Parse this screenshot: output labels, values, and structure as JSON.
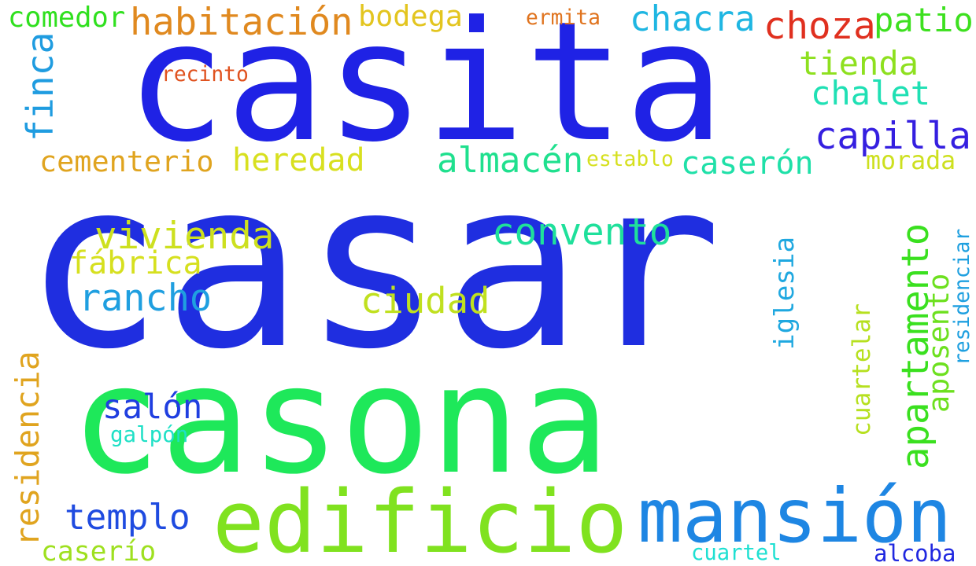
{
  "words": [
    {
      "text": "casar",
      "color": "#1f2ee0"
    },
    {
      "text": "casita",
      "color": "#1f22e5"
    },
    {
      "text": "casona",
      "color": "#1ee85a"
    },
    {
      "text": "edificio",
      "color": "#80e21f"
    },
    {
      "text": "mansión",
      "color": "#1e86e3"
    },
    {
      "text": "habitación",
      "color": "#e0891f"
    },
    {
      "text": "bodega",
      "color": "#e3c51f"
    },
    {
      "text": "chacra",
      "color": "#1fb6e2"
    },
    {
      "text": "choza",
      "color": "#e0301f"
    },
    {
      "text": "patio",
      "color": "#3de01f"
    },
    {
      "text": "comedor",
      "color": "#30e01f"
    },
    {
      "text": "ermita",
      "color": "#e0741f"
    },
    {
      "text": "recinto",
      "color": "#e0521f"
    },
    {
      "text": "tienda",
      "color": "#8ee01f"
    },
    {
      "text": "chalet",
      "color": "#1fe0b4"
    },
    {
      "text": "capilla",
      "color": "#351fe0"
    },
    {
      "text": "finca",
      "color": "#1f9ce0"
    },
    {
      "text": "cementerio",
      "color": "#e0a41f"
    },
    {
      "text": "heredad",
      "color": "#d8e01f"
    },
    {
      "text": "almacén",
      "color": "#1fe08e"
    },
    {
      "text": "establo",
      "color": "#d6e01f"
    },
    {
      "text": "caserón",
      "color": "#1fe0a8"
    },
    {
      "text": "morada",
      "color": "#cde01f"
    },
    {
      "text": "vivienda",
      "color": "#cde01f"
    },
    {
      "text": "convento",
      "color": "#1fe09b"
    },
    {
      "text": "fábrica",
      "color": "#d6e01f"
    },
    {
      "text": "rancho",
      "color": "#1f9fe0"
    },
    {
      "text": "ciudad",
      "color": "#c0e01f"
    },
    {
      "text": "apartamento",
      "color": "#3ae01f"
    },
    {
      "text": "aposento",
      "color": "#6de01f"
    },
    {
      "text": "iglesia",
      "color": "#1fa8e0"
    },
    {
      "text": "residenciar",
      "color": "#1fa0e0"
    },
    {
      "text": "cuartelar",
      "color": "#b6e01f"
    },
    {
      "text": "salón",
      "color": "#1f3ee0"
    },
    {
      "text": "galpón",
      "color": "#1fe0c6"
    },
    {
      "text": "residencia",
      "color": "#e0a41f"
    },
    {
      "text": "templo",
      "color": "#1f4be0"
    },
    {
      "text": "caserío",
      "color": "#9ee01f"
    },
    {
      "text": "cuartel",
      "color": "#1fe0d2"
    },
    {
      "text": "alcoba",
      "color": "#1f27e0"
    }
  ]
}
